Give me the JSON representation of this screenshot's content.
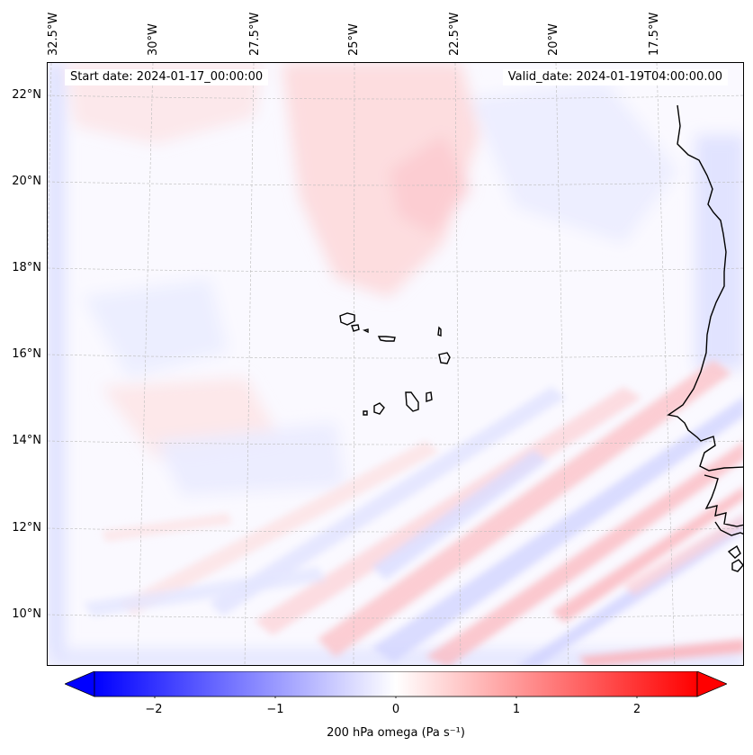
{
  "map": {
    "info": {
      "start_date": "Start date: 2024-01-17_00:00:00",
      "valid_date": "Valid_date: 2024-01-19T04:00:00.00"
    },
    "lon_ticks": [
      "32.5°W",
      "30°W",
      "27.5°W",
      "25°W",
      "22.5°W",
      "20°W",
      "17.5°W"
    ],
    "lat_ticks": [
      "22°N",
      "20°N",
      "18°N",
      "16°N",
      "14°N",
      "12°N",
      "10°N"
    ],
    "field": "omega",
    "colors": {
      "negative": "#0000ff",
      "zero": "#ffffff",
      "positive": "#ff0000",
      "coastline": "#000000",
      "gridline": "#bbbbbb"
    }
  },
  "colorbar": {
    "min": -2.5,
    "max": 2.5,
    "ticks": [
      "−2",
      "−1",
      "0",
      "1",
      "2"
    ],
    "tick_values": [
      -2,
      -1,
      0,
      1,
      2
    ],
    "label": "200 hPa omega (Pa s⁻¹)"
  }
}
